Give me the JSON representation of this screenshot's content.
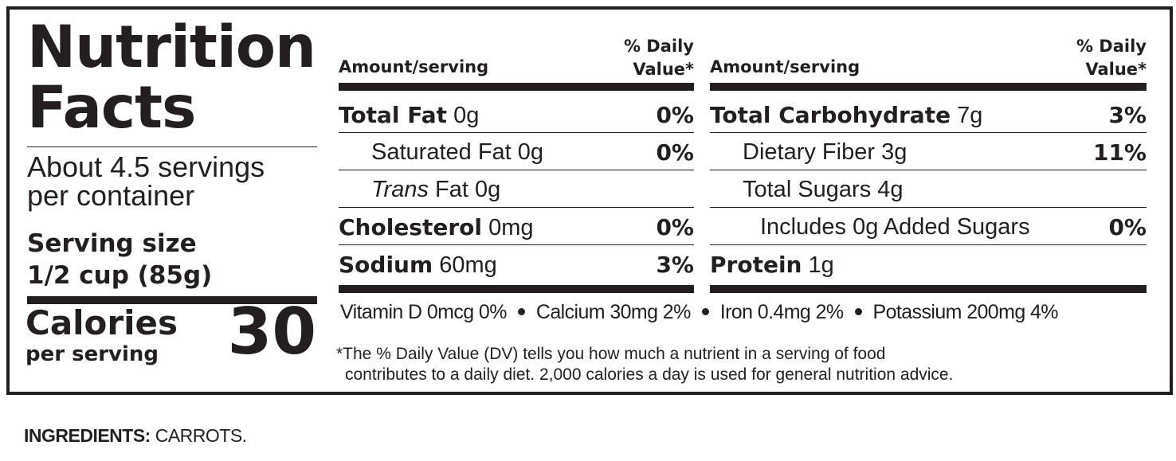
{
  "panel": {
    "title_line1": "Nutrition",
    "title_line2": "Facts",
    "servings_line1": "About 4.5 servings",
    "servings_line2": "per container",
    "serving_size_label": "Serving size",
    "serving_size_value": "1/2 cup (85g)",
    "calories_label": "Calories",
    "calories_sub": "per serving",
    "calories_value": "30"
  },
  "table": {
    "header_amount": "Amount/serving",
    "header_dv_line1": "% Daily",
    "header_dv_line2": "Value*",
    "left_rows": [
      {
        "name": "Total Fat",
        "amount": "0g",
        "dv": "0%",
        "bold": true,
        "indent": 0
      },
      {
        "name": "Saturated Fat",
        "amount": "0g",
        "dv": "0%",
        "bold": false,
        "indent": 1
      },
      {
        "name": "Trans",
        "name_rest": "Fat",
        "amount": "0g",
        "dv": "",
        "bold": false,
        "indent": 1,
        "italic_first": true
      },
      {
        "name": "Cholesterol",
        "amount": "0mg",
        "dv": "0%",
        "bold": true,
        "indent": 0
      },
      {
        "name": "Sodium",
        "amount": "60mg",
        "dv": "3%",
        "bold": true,
        "indent": 0
      }
    ],
    "right_rows": [
      {
        "name": "Total Carbohydrate",
        "amount": "7g",
        "dv": "3%",
        "bold": true,
        "indent": 0
      },
      {
        "name": "Dietary Fiber",
        "amount": "3g",
        "dv": "11%",
        "bold": false,
        "indent": 1
      },
      {
        "name": "Total Sugars",
        "amount": "4g",
        "dv": "",
        "bold": false,
        "indent": 1
      },
      {
        "name": "Includes 0g Added Sugars",
        "amount": "",
        "dv": "0%",
        "bold": false,
        "indent": 2
      },
      {
        "name": "Protein",
        "amount": "1g",
        "dv": "",
        "bold": true,
        "indent": 0
      }
    ]
  },
  "vitamins": [
    "Vitamin D 0mcg 0%",
    "Calcium 30mg 2%",
    "Iron 0.4mg 2%",
    "Potassium 200mg 4%"
  ],
  "footnote": {
    "line1": "*The % Daily Value (DV) tells you how much a nutrient in a serving of food",
    "line2": "contributes to a daily diet. 2,000 calories a day is used for general nutrition advice."
  },
  "ingredients": {
    "label": "INGREDIENTS:",
    "text": "CARROTS."
  }
}
